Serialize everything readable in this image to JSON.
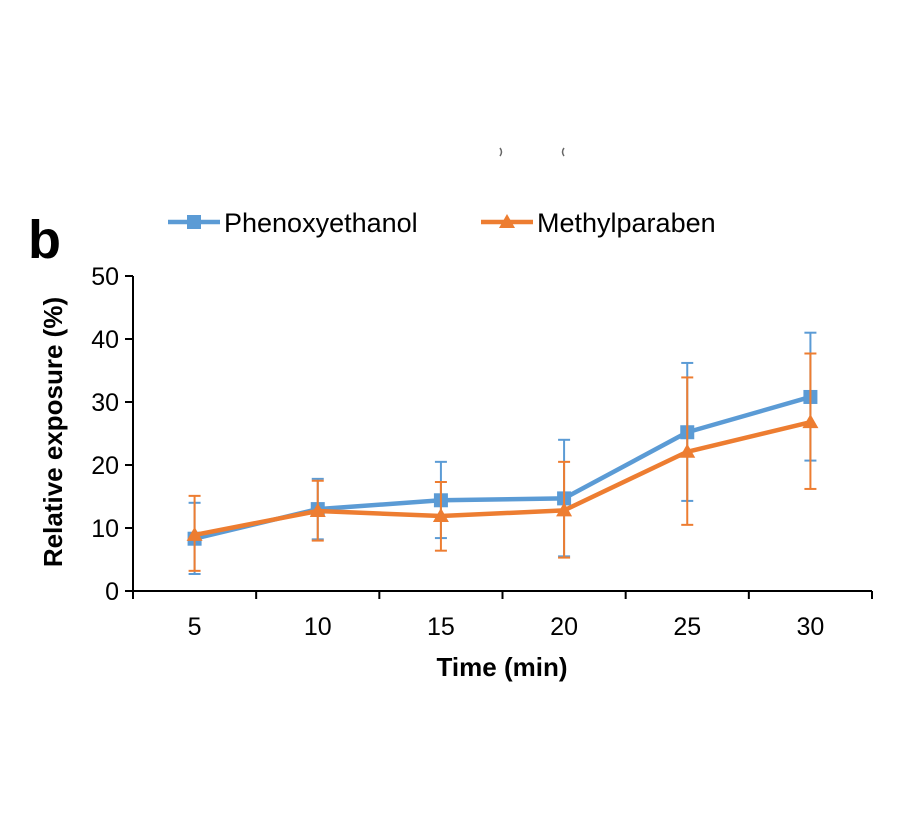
{
  "chart_data": {
    "type": "line",
    "panel_label": "b",
    "title": "",
    "xlabel": "Time (min)",
    "ylabel": "Relative exposure (%)",
    "x": [
      5,
      10,
      15,
      20,
      25,
      30
    ],
    "x_tick_labels": [
      "5",
      "10",
      "15",
      "20",
      "25",
      "30"
    ],
    "y_tick_labels": [
      "0",
      "10",
      "20",
      "30",
      "40",
      "50"
    ],
    "ylim": [
      0,
      50
    ],
    "grid": false,
    "legend_position": "top",
    "series": [
      {
        "name": "Phenoxyethanol",
        "marker": "square",
        "color": "#5B9BD5",
        "values": [
          8.3,
          13.0,
          14.4,
          14.7,
          25.2,
          30.8
        ],
        "error_upper": [
          14.0,
          17.8,
          20.5,
          24.0,
          36.2,
          41.0
        ],
        "error_lower": [
          2.7,
          8.2,
          8.4,
          5.5,
          14.3,
          20.7
        ]
      },
      {
        "name": "Methylparaben",
        "marker": "triangle",
        "color": "#ED7D31",
        "values": [
          8.9,
          12.7,
          11.9,
          12.8,
          22.1,
          26.8
        ],
        "error_upper": [
          15.1,
          17.5,
          17.3,
          20.5,
          33.9,
          37.7
        ],
        "error_lower": [
          3.2,
          8.0,
          6.4,
          5.3,
          10.5,
          16.2
        ]
      }
    ]
  }
}
